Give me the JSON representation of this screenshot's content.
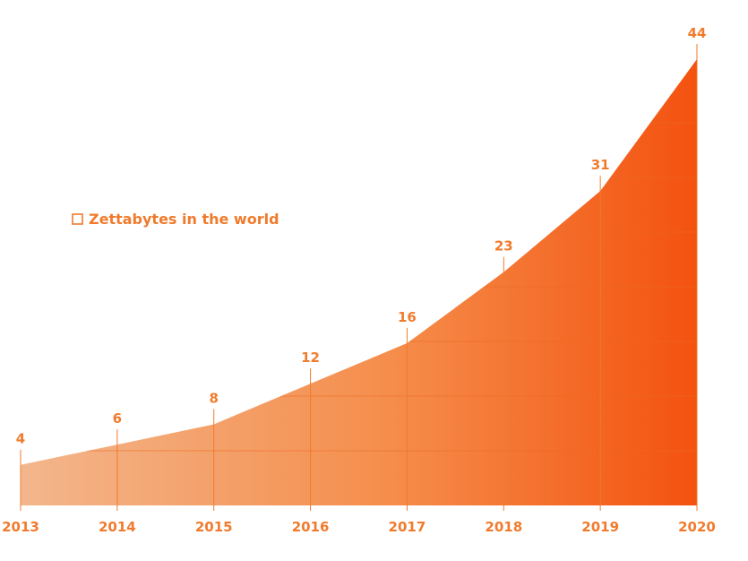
{
  "chart_data": {
    "type": "area",
    "x": [
      "2013",
      "2014",
      "2015",
      "2016",
      "2017",
      "2018",
      "2019",
      "2020"
    ],
    "series": [
      {
        "name": "Zettabytes in the world",
        "values": [
          4,
          6,
          8,
          12,
          16,
          23,
          31,
          44
        ]
      }
    ],
    "title": "",
    "xlabel": "",
    "ylabel": "",
    "ylim": [
      0,
      44
    ],
    "grid": true,
    "legend_position": "left",
    "colors": {
      "accent": "#f07b2d",
      "area_start": "#f3b68c",
      "area_end": "#f4520f",
      "grid": "#e86a22"
    }
  }
}
